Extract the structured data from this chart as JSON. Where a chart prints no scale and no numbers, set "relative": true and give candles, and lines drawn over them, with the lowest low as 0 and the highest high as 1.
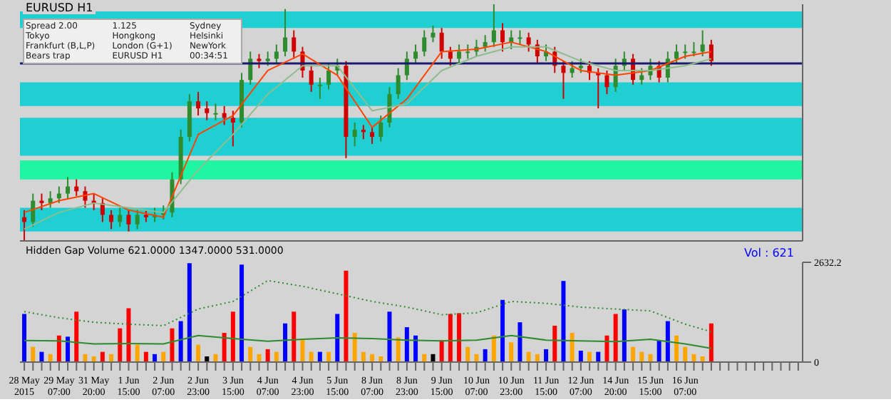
{
  "chart_data": [
    {
      "type": "candlestick",
      "relative": true,
      "tick_labels": false,
      "title": "EURUSD  H1",
      "categories": [
        null,
        null,
        null,
        null,
        null,
        null,
        null,
        null,
        null,
        null,
        null,
        null,
        null,
        null,
        null,
        null,
        null,
        null,
        null,
        null,
        null,
        null,
        null,
        null,
        null,
        null,
        null,
        null,
        null,
        null,
        null,
        null,
        null,
        null,
        null,
        null,
        null,
        null,
        null,
        null,
        null,
        null,
        null,
        null,
        null,
        null,
        null,
        null,
        null,
        null,
        null,
        null,
        null,
        null,
        null,
        null,
        null,
        null,
        null,
        null,
        null,
        null,
        null,
        null,
        null,
        null,
        null,
        null,
        null,
        null,
        null,
        null,
        null,
        null,
        null,
        null,
        null,
        null,
        null,
        null,
        null,
        null,
        null,
        null,
        null,
        null,
        null,
        null,
        null,
        null
      ],
      "ohlc": [
        [
          0.1,
          0.13,
          0,
          0.08
        ],
        [
          0.08,
          0.2,
          0.06,
          0.17
        ],
        [
          0.17,
          0.2,
          0.13,
          0.16
        ],
        [
          0.16,
          0.21,
          0.14,
          0.18
        ],
        [
          0.18,
          0.23,
          0.16,
          0.2
        ],
        [
          0.2,
          0.27,
          0.18,
          0.23
        ],
        [
          0.23,
          0.26,
          0.19,
          0.21
        ],
        [
          0.21,
          0.23,
          0.14,
          0.17
        ],
        [
          0.17,
          0.2,
          0.13,
          0.16
        ],
        [
          0.16,
          0.18,
          0.08,
          0.11
        ],
        [
          0.11,
          0.13,
          0.05,
          0.08
        ],
        [
          0.08,
          0.14,
          0.06,
          0.11
        ],
        [
          0.11,
          0.13,
          0.04,
          0.07
        ],
        [
          0.07,
          0.13,
          0.05,
          0.11
        ],
        [
          0.11,
          0.13,
          0.08,
          0.1
        ],
        [
          0.1,
          0.14,
          0.08,
          0.11
        ],
        [
          0.11,
          0.15,
          0.09,
          0.12
        ],
        [
          0.12,
          0.29,
          0.1,
          0.26
        ],
        [
          0.26,
          0.47,
          0.24,
          0.44
        ],
        [
          0.44,
          0.62,
          0.42,
          0.59
        ],
        [
          0.59,
          0.63,
          0.53,
          0.56
        ],
        [
          0.56,
          0.59,
          0.51,
          0.54
        ],
        [
          0.54,
          0.58,
          0.51,
          0.54
        ],
        [
          0.54,
          0.57,
          0.49,
          0.52
        ],
        [
          0.52,
          0.55,
          0.4,
          0.5
        ],
        [
          0.5,
          0.71,
          0.48,
          0.68
        ],
        [
          0.68,
          0.8,
          0.66,
          0.77
        ],
        [
          0.77,
          0.79,
          0.73,
          0.76
        ],
        [
          0.76,
          0.8,
          0.74,
          0.77
        ],
        [
          0.77,
          0.83,
          0.75,
          0.8
        ],
        [
          0.8,
          0.98,
          0.78,
          0.86
        ],
        [
          0.86,
          0.89,
          0.77,
          0.8
        ],
        [
          0.8,
          0.82,
          0.69,
          0.72
        ],
        [
          0.72,
          0.74,
          0.63,
          0.66
        ],
        [
          0.66,
          0.69,
          0.6,
          0.66
        ],
        [
          0.66,
          0.75,
          0.64,
          0.72
        ],
        [
          0.72,
          0.77,
          0.7,
          0.74
        ],
        [
          0.74,
          0.76,
          0.35,
          0.44
        ],
        [
          0.44,
          0.5,
          0.4,
          0.47
        ],
        [
          0.47,
          0.49,
          0.43,
          0.46
        ],
        [
          0.46,
          0.48,
          0.41,
          0.44
        ],
        [
          0.44,
          0.53,
          0.42,
          0.5
        ],
        [
          0.5,
          0.65,
          0.48,
          0.62
        ],
        [
          0.62,
          0.73,
          0.6,
          0.7
        ],
        [
          0.7,
          0.8,
          0.68,
          0.77
        ],
        [
          0.77,
          0.83,
          0.75,
          0.8
        ],
        [
          0.8,
          0.89,
          0.78,
          0.86
        ],
        [
          0.86,
          0.91,
          0.84,
          0.88
        ],
        [
          0.88,
          0.9,
          0.77,
          0.8
        ],
        [
          0.8,
          0.82,
          0.74,
          0.77
        ],
        [
          0.77,
          0.83,
          0.75,
          0.8
        ],
        [
          0.8,
          0.83,
          0.77,
          0.8
        ],
        [
          0.8,
          0.85,
          0.78,
          0.82
        ],
        [
          0.82,
          0.87,
          0.8,
          0.84
        ],
        [
          0.84,
          1,
          0.82,
          0.89
        ],
        [
          0.89,
          0.92,
          0.8,
          0.84
        ],
        [
          0.84,
          0.89,
          0.81,
          0.86
        ],
        [
          0.86,
          0.89,
          0.83,
          0.86
        ],
        [
          0.86,
          0.88,
          0.8,
          0.83
        ],
        [
          0.83,
          0.85,
          0.75,
          0.78
        ],
        [
          0.78,
          0.83,
          0.76,
          0.8
        ],
        [
          0.8,
          0.82,
          0.71,
          0.74
        ],
        [
          0.74,
          0.76,
          0.6,
          0.71
        ],
        [
          0.71,
          0.76,
          0.69,
          0.73
        ],
        [
          0.73,
          0.77,
          0.71,
          0.74
        ],
        [
          0.74,
          0.76,
          0.68,
          0.71
        ],
        [
          0.71,
          0.73,
          0.56,
          0.7
        ],
        [
          0.7,
          0.72,
          0.62,
          0.65
        ],
        [
          0.65,
          0.77,
          0.63,
          0.74
        ],
        [
          0.74,
          0.8,
          0.72,
          0.77
        ],
        [
          0.77,
          0.79,
          0.66,
          0.68
        ],
        [
          0.68,
          0.73,
          0.66,
          0.7
        ],
        [
          0.7,
          0.77,
          0.68,
          0.74
        ],
        [
          0.74,
          0.76,
          0.67,
          0.69
        ],
        [
          0.69,
          0.8,
          0.67,
          0.77
        ],
        [
          0.77,
          0.83,
          0.75,
          0.8
        ],
        [
          0.8,
          0.83,
          0.77,
          0.8
        ],
        [
          0.8,
          0.84,
          0.78,
          0.8
        ],
        [
          0.8,
          0.89,
          0.78,
          0.83
        ],
        [
          0.83,
          0.85,
          0.74,
          0.76
        ],
        null,
        null,
        null,
        null,
        null,
        null,
        null,
        null,
        null,
        null
      ],
      "series": [
        {
          "type": "line",
          "color": "#ff4500",
          "values": [
            0.12,
            null,
            null,
            null,
            0.17,
            null,
            null,
            null,
            0.2,
            null,
            null,
            null,
            0.13,
            null,
            null,
            null,
            0.1,
            null,
            null,
            null,
            0.45,
            null,
            null,
            null,
            0.53,
            null,
            null,
            null,
            0.72,
            null,
            null,
            null,
            0.79,
            null,
            null,
            null,
            0.7,
            null,
            null,
            null,
            0.48,
            null,
            null,
            null,
            0.6,
            null,
            null,
            null,
            0.8,
            null,
            null,
            null,
            0.81,
            null,
            null,
            null,
            0.84,
            null,
            null,
            null,
            0.8,
            null,
            null,
            null,
            0.72,
            null,
            null,
            null,
            0.7,
            null,
            null,
            null,
            0.72,
            null,
            null,
            null,
            0.78,
            null,
            null,
            0.8,
            null,
            null,
            null,
            null,
            null,
            null,
            null,
            null,
            null,
            null
          ]
        },
        {
          "type": "line",
          "color": "#8fbc8f",
          "values": [
            0.05,
            null,
            null,
            null,
            0.12,
            null,
            null,
            null,
            0.16,
            null,
            null,
            null,
            0.14,
            null,
            null,
            null,
            0.12,
            null,
            null,
            null,
            0.3,
            null,
            null,
            null,
            0.45,
            null,
            null,
            null,
            0.62,
            null,
            null,
            null,
            0.74,
            null,
            null,
            null,
            0.74,
            null,
            null,
            null,
            0.55,
            null,
            null,
            null,
            0.58,
            null,
            null,
            null,
            0.72,
            null,
            null,
            null,
            0.78,
            null,
            null,
            null,
            0.82,
            null,
            null,
            null,
            0.82,
            null,
            null,
            null,
            0.76,
            null,
            null,
            null,
            0.72,
            null,
            null,
            null,
            0.72,
            null,
            null,
            null,
            0.74,
            null,
            null,
            0.77,
            null,
            null,
            null,
            null,
            null,
            null,
            null,
            null,
            null,
            null
          ]
        }
      ],
      "bands": [
        {
          "axis": "y",
          "from": 0.9,
          "to": 0.97,
          "color": "#00ced1"
        },
        {
          "axis": "y",
          "from": 0.57,
          "to": 0.67,
          "color": "#00ced1"
        },
        {
          "axis": "y",
          "from": 0.36,
          "to": 0.52,
          "color": "#00ced1"
        },
        {
          "axis": "y",
          "from": 0.04,
          "to": 0.14,
          "color": "#00ced1"
        },
        {
          "axis": "y",
          "from": 0.26,
          "to": 0.34,
          "color": "#00fa9a"
        }
      ],
      "ref_lines": [
        {
          "axis": "y",
          "value": 0.75,
          "color": "#1a1a6e"
        }
      ],
      "annotations": [
        "Spread 2.00",
        "1.125",
        "Sydney",
        "Tokyo",
        "Hongkong",
        "Helsinki",
        "Frankfurt (B,L,P)",
        "London (G+1)",
        "NewYork",
        "Bears trap",
        "EURUSD H1",
        "00:34:51"
      ]
    },
    {
      "type": "bar",
      "title": "Hidden Gap Volume 621.0000 1347.0000 531.0000",
      "ylim": [
        0,
        2632.2
      ],
      "yticks": [
        0,
        2632.2
      ],
      "categories": [
        "28 May 2015",
        null,
        null,
        null,
        "29 May 07:00",
        null,
        null,
        null,
        "31 May 20:00",
        null,
        null,
        null,
        "1 Jun 15:00",
        null,
        null,
        null,
        "2 Jun 07:00",
        null,
        null,
        null,
        "2 Jun 23:00",
        null,
        null,
        null,
        "3 Jun 15:00",
        null,
        null,
        null,
        "4 Jun 07:00",
        null,
        null,
        null,
        "4 Jun 23:00",
        null,
        null,
        null,
        "5 Jun 15:00",
        null,
        null,
        null,
        "8 Jun 07:00",
        null,
        null,
        null,
        "8 Jun 23:00",
        null,
        null,
        null,
        "9 Jun 15:00",
        null,
        null,
        null,
        "10 Jun 07:00",
        null,
        null,
        null,
        "10 Jun 23:00",
        null,
        null,
        null,
        "11 Jun 15:00",
        null,
        null,
        null,
        "12 Jun 07:00",
        null,
        null,
        null,
        "14 Jun 20:00",
        null,
        null,
        null,
        "15 Jun 15:00",
        null,
        null,
        null,
        "16 Jun 07:00",
        null,
        null,
        null,
        null,
        null,
        null,
        null,
        null,
        null,
        null,
        null,
        null,
        null
      ],
      "series": [
        {
          "type": "bar",
          "values": [
            1270,
            400,
            270,
            210,
            700,
            670,
            1330,
            210,
            150,
            270,
            210,
            890,
            1420,
            460,
            270,
            210,
            270,
            890,
            1080,
            2610,
            460,
            150,
            210,
            770,
            1330,
            2570,
            400,
            210,
            340,
            270,
            1020,
            1330,
            580,
            270,
            270,
            270,
            1270,
            2410,
            770,
            270,
            210,
            150,
            1330,
            650,
            920,
            700,
            210,
            210,
            580,
            1270,
            1290,
            400,
            210,
            340,
            700,
            1640,
            520,
            1050,
            270,
            210,
            340,
            960,
            2140,
            770,
            300,
            270,
            270,
            700,
            1270,
            1390,
            400,
            270,
            210,
            580,
            1080,
            700,
            400,
            210,
            150,
            1020,
            null,
            null,
            null,
            null,
            null,
            null,
            null,
            null,
            null,
            null
          ],
          "colors": [
            "#0000ff",
            "#ffa500",
            "#0000ff",
            "#ffa500",
            "#ff0000",
            "#0000ff",
            "#ff0000",
            "#ffa500",
            "#ffa500",
            "#ff0000",
            "#ffa500",
            "#ff0000",
            "#ff0000",
            "#ffa500",
            "#ff0000",
            "#0000ff",
            "#ffa500",
            "#ff0000",
            "#0000ff",
            "#0000ff",
            "#ffa500",
            "#000000",
            "#ffa500",
            "#ff0000",
            "#ff0000",
            "#0000ff",
            "#ffa500",
            "#ffa500",
            "#ff0000",
            "#ffa500",
            "#0000ff",
            "#ff0000",
            "#ffa500",
            "#ffa500",
            "#0000ff",
            "#ffa500",
            "#0000ff",
            "#ff0000",
            "#ffa500",
            "#ffa500",
            "#ffa500",
            "#ffa500",
            "#0000ff",
            "#ffa500",
            "#0000ff",
            "#0000ff",
            "#ffa500",
            "#000000",
            "#ff0000",
            "#ff0000",
            "#ff0000",
            "#ffa500",
            "#ffa500",
            "#0000ff",
            "#ffa500",
            "#0000ff",
            "#ffa500",
            "#0000ff",
            "#ffa500",
            "#ffa500",
            "#0000ff",
            "#ff0000",
            "#0000ff",
            "#ffa500",
            "#0000ff",
            "#ffa500",
            "#0000ff",
            "#ff0000",
            "#ff0000",
            "#0000ff",
            "#ffa500",
            "#ffa500",
            "#ffa500",
            "#0000ff",
            "#0000ff",
            "#ffa500",
            "#ffa500",
            "#ffa500",
            "#ffa500",
            "#ff0000",
            null,
            null,
            null,
            null,
            null,
            null,
            null,
            null,
            null,
            null
          ]
        },
        {
          "type": "line",
          "color": "#2e8b2e",
          "line_style": "dotted",
          "values": [
            1330,
            null,
            null,
            null,
            1170,
            null,
            null,
            null,
            1050,
            null,
            null,
            null,
            1000,
            null,
            null,
            null,
            960,
            null,
            null,
            null,
            1400,
            null,
            null,
            null,
            1600,
            null,
            null,
            null,
            2150,
            null,
            null,
            null,
            2000,
            null,
            null,
            null,
            1800,
            null,
            null,
            null,
            1600,
            null,
            null,
            null,
            1450,
            null,
            null,
            null,
            1250,
            null,
            null,
            null,
            1300,
            null,
            null,
            null,
            1600,
            null,
            null,
            null,
            1550,
            null,
            null,
            null,
            1450,
            null,
            null,
            null,
            1400,
            null,
            null,
            null,
            1350,
            null,
            null,
            null,
            1000,
            null,
            null,
            800,
            null,
            null,
            null,
            null,
            null,
            null,
            null,
            null,
            null,
            null
          ]
        },
        {
          "type": "line",
          "color": "#2e8b2e",
          "line_style": "solid",
          "values": [
            570,
            null,
            null,
            null,
            560,
            null,
            null,
            null,
            480,
            null,
            null,
            null,
            490,
            null,
            null,
            null,
            480,
            null,
            null,
            null,
            700,
            null,
            null,
            null,
            620,
            null,
            null,
            null,
            550,
            null,
            null,
            null,
            600,
            null,
            null,
            null,
            640,
            null,
            null,
            null,
            620,
            null,
            null,
            null,
            580,
            null,
            null,
            null,
            560,
            null,
            null,
            null,
            580,
            null,
            null,
            null,
            700,
            null,
            null,
            null,
            580,
            null,
            null,
            null,
            560,
            null,
            null,
            null,
            540,
            null,
            null,
            null,
            600,
            null,
            null,
            null,
            480,
            null,
            null,
            360,
            null,
            null,
            null,
            null,
            null,
            null,
            null,
            null,
            null,
            null
          ]
        }
      ],
      "annotations": [
        "Vol : 621"
      ]
    }
  ]
}
